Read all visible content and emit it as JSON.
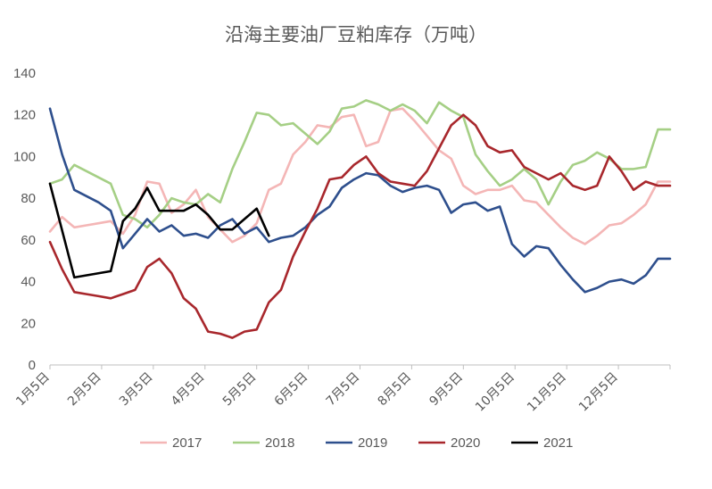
{
  "chart_data": {
    "type": "line",
    "title": "沿海主要油厂豆粕库存（万吨）",
    "xlabel": "",
    "ylabel": "",
    "ylim": [
      0,
      140
    ],
    "yticks": [
      0,
      20,
      40,
      60,
      80,
      100,
      120,
      140
    ],
    "x_tick_labels": [
      "1月5日",
      "2月5日",
      "3月5日",
      "4月5日",
      "5月5日",
      "6月5日",
      "7月5日",
      "8月5日",
      "9月5日",
      "10月5日",
      "11月5日",
      "12月5日"
    ],
    "x_unit": "week of year (1–52)",
    "grid": false,
    "legend_position": "bottom",
    "series": [
      {
        "name": "2017",
        "color": "#f4b6b6",
        "x": [
          1,
          2,
          3,
          4,
          5,
          6,
          7,
          8,
          9,
          10,
          11,
          12,
          13,
          14,
          15,
          16,
          17,
          18,
          19,
          20,
          21,
          22,
          23,
          24,
          25,
          26,
          27,
          28,
          29,
          30,
          31,
          32,
          33,
          34,
          35,
          36,
          37,
          38,
          39,
          40,
          41,
          42,
          43,
          44,
          45,
          46,
          47,
          48,
          49,
          50,
          51,
          52
        ],
        "values": [
          64,
          71,
          66,
          67,
          68,
          69,
          63,
          72,
          88,
          87,
          73,
          77,
          84,
          71,
          65,
          59,
          62,
          68,
          84,
          87,
          101,
          107,
          115,
          114,
          119,
          120,
          105,
          107,
          122,
          123,
          117,
          110,
          103,
          99,
          86,
          82,
          84,
          84,
          86,
          79,
          78,
          72,
          66,
          61,
          58,
          62,
          67,
          68,
          72,
          77,
          88,
          88
        ]
      },
      {
        "name": "2018",
        "color": "#a5cf85",
        "x": [
          1,
          2,
          3,
          4,
          5,
          6,
          7,
          8,
          9,
          10,
          11,
          12,
          13,
          14,
          15,
          16,
          17,
          18,
          19,
          20,
          21,
          22,
          23,
          24,
          25,
          26,
          27,
          28,
          29,
          30,
          31,
          32,
          33,
          34,
          35,
          36,
          37,
          38,
          39,
          40,
          41,
          42,
          43,
          44,
          45,
          46,
          47,
          48,
          49,
          50,
          51,
          52
        ],
        "values": [
          87,
          89,
          96,
          93,
          90,
          87,
          72,
          70,
          66,
          72,
          80,
          78,
          77,
          82,
          78,
          94,
          107,
          121,
          120,
          115,
          116,
          111,
          106,
          112,
          123,
          124,
          127,
          125,
          122,
          125,
          122,
          116,
          126,
          122,
          119,
          101,
          93,
          86,
          89,
          94,
          89,
          77,
          88,
          96,
          98,
          102,
          99,
          94,
          94,
          95,
          113,
          113
        ]
      },
      {
        "name": "2019",
        "color": "#2e4f8d",
        "x": [
          1,
          2,
          3,
          4,
          5,
          6,
          7,
          8,
          9,
          10,
          11,
          12,
          13,
          14,
          15,
          16,
          17,
          18,
          19,
          20,
          21,
          22,
          23,
          24,
          25,
          26,
          27,
          28,
          29,
          30,
          31,
          32,
          33,
          34,
          35,
          36,
          37,
          38,
          39,
          40,
          41,
          42,
          43,
          44,
          45,
          46,
          47,
          48,
          49,
          50,
          51,
          52
        ],
        "values": [
          123,
          101,
          84,
          81,
          78,
          74,
          56,
          63,
          70,
          64,
          67,
          62,
          63,
          61,
          67,
          70,
          63,
          66,
          59,
          61,
          62,
          66,
          72,
          76,
          85,
          89,
          92,
          91,
          86,
          83,
          85,
          86,
          84,
          73,
          77,
          78,
          74,
          76,
          58,
          52,
          57,
          56,
          48,
          41,
          35,
          37,
          40,
          41,
          39,
          43,
          51,
          51
        ]
      },
      {
        "name": "2020",
        "color": "#a8272c",
        "x": [
          1,
          2,
          3,
          4,
          5,
          6,
          7,
          8,
          9,
          10,
          11,
          12,
          13,
          14,
          15,
          16,
          17,
          18,
          19,
          20,
          21,
          22,
          23,
          24,
          25,
          26,
          27,
          28,
          29,
          30,
          31,
          32,
          33,
          34,
          35,
          36,
          37,
          38,
          39,
          40,
          41,
          42,
          43,
          44,
          45,
          46,
          47,
          48,
          49,
          50,
          51,
          52
        ],
        "values": [
          59,
          46,
          35,
          34,
          33,
          32,
          34,
          36,
          47,
          51,
          44,
          32,
          27,
          16,
          15,
          13,
          16,
          17,
          30,
          36,
          52,
          64,
          75,
          89,
          90,
          96,
          100,
          92,
          88,
          87,
          86,
          93,
          104,
          115,
          120,
          115,
          105,
          102,
          103,
          95,
          92,
          89,
          92,
          86,
          84,
          86,
          100,
          93,
          84,
          88,
          86,
          86
        ]
      },
      {
        "name": "2021",
        "color": "#000000",
        "x": [
          1,
          3,
          6,
          7,
          8,
          9,
          10,
          11,
          12,
          13,
          14,
          15,
          16,
          17,
          18,
          19
        ],
        "values": [
          87,
          42,
          45,
          69,
          75,
          85,
          74,
          74,
          74,
          77,
          72,
          65,
          65,
          70,
          75,
          62
        ]
      }
    ]
  }
}
